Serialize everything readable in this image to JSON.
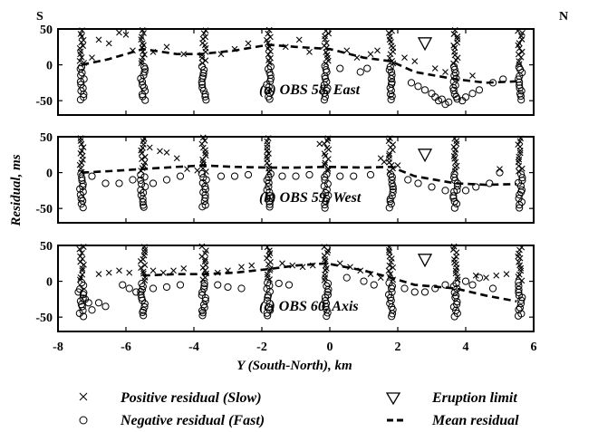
{
  "chart_data": {
    "type": "scatter",
    "xlabel": "Y (South-North), km",
    "ylabel": "Residual, ms",
    "xlim": [
      -8,
      6
    ],
    "x_ticks": [
      "-8",
      "-6",
      "-4",
      "-2",
      "0",
      "2",
      "4",
      "6"
    ],
    "ylim": [
      -70,
      50
    ],
    "y_ticks": [
      "50",
      "0",
      "-50"
    ],
    "corner_labels": {
      "left": "S",
      "right": "N"
    },
    "eruption_limit_x": 2.8,
    "panels": [
      {
        "label": "(a) OBS 58, East",
        "eruption_limit_y": 30,
        "mean_residual": {
          "x": [
            -7.3,
            -6.5,
            -5.5,
            -4.5,
            -3.8,
            -2.8,
            -1.8,
            -1.0,
            0.0,
            1.0,
            1.8,
            2.5,
            3.7,
            4.6,
            5.5
          ],
          "y": [
            0,
            8,
            22,
            15,
            15,
            20,
            28,
            25,
            22,
            10,
            5,
            -10,
            -20,
            -25,
            -23
          ]
        },
        "clusters_x": [
          -7.3,
          -5.5,
          -3.7,
          -1.8,
          -0.1,
          1.8,
          3.7,
          5.6
        ],
        "positive_scatter": {
          "x": [
            -7.0,
            -6.8,
            -6.5,
            -6.2,
            -6.0,
            -5.8,
            -5.2,
            -4.8,
            -4.3,
            -3.2,
            -2.8,
            -2.4,
            -1.3,
            -0.9,
            -0.6,
            0.5,
            0.8,
            1.2,
            1.4,
            2.2,
            2.5,
            3.1,
            3.4,
            4.2
          ],
          "y": [
            10,
            35,
            30,
            45,
            42,
            20,
            18,
            25,
            15,
            15,
            22,
            30,
            25,
            35,
            18,
            20,
            10,
            15,
            20,
            10,
            5,
            -5,
            -10,
            -15
          ]
        },
        "negative_scatter": {
          "x": [
            0.3,
            0.9,
            1.1,
            2.4,
            2.6,
            2.8,
            3.0,
            3.1,
            3.2,
            3.3,
            3.4,
            3.5,
            3.9,
            4.0,
            4.2,
            4.4,
            4.8,
            5.1
          ],
          "y": [
            -5,
            -10,
            -5,
            -25,
            -30,
            -35,
            -40,
            -45,
            -50,
            -48,
            -55,
            -52,
            -50,
            -45,
            -40,
            -35,
            -25,
            -20
          ]
        }
      },
      {
        "label": "(b) OBS 59, West",
        "eruption_limit_y": 25,
        "mean_residual": {
          "x": [
            -7.3,
            -6.5,
            -5.5,
            -4.5,
            -3.7,
            -2.8,
            -1.8,
            -1.0,
            -0.1,
            1.0,
            1.8,
            2.5,
            3.7,
            4.6,
            5.5
          ],
          "y": [
            0,
            2,
            5,
            8,
            10,
            8,
            7,
            7,
            8,
            7,
            8,
            -5,
            -15,
            -17,
            -16
          ]
        },
        "clusters_x": [
          -7.3,
          -5.5,
          -3.7,
          -1.8,
          -0.1,
          1.8,
          3.7,
          5.6
        ],
        "positive_scatter": {
          "x": [
            -5.3,
            -5.0,
            -4.8,
            -4.5,
            -4.2,
            -3.9,
            -0.3,
            1.5,
            1.6,
            2.0,
            5.0
          ],
          "y": [
            35,
            30,
            28,
            20,
            5,
            3,
            40,
            20,
            15,
            10,
            5
          ]
        },
        "negative_scatter": {
          "x": [
            -7.0,
            -6.6,
            -6.2,
            -5.8,
            -5.2,
            -4.8,
            -4.4,
            -3.2,
            -2.8,
            -2.4,
            -1.4,
            -1.0,
            -0.6,
            0.3,
            0.7,
            1.2,
            2.3,
            2.6,
            3.0,
            3.4,
            4.0,
            4.3,
            4.7,
            5.0
          ],
          "y": [
            -5,
            -15,
            -15,
            -10,
            -15,
            -10,
            -5,
            -5,
            -5,
            -3,
            -5,
            -5,
            -3,
            -5,
            -5,
            -3,
            -10,
            -15,
            -20,
            -25,
            -25,
            -20,
            -15,
            0
          ]
        }
      },
      {
        "label": "(c) OBS 60, Axis",
        "eruption_limit_y": 30,
        "mean_residual": {
          "x": [
            -5.5,
            -4.5,
            -3.7,
            -2.8,
            -1.8,
            -1.0,
            -0.1,
            1.0,
            1.8,
            2.5,
            3.7,
            4.6,
            5.5
          ],
          "y": [
            8,
            10,
            10,
            12,
            17,
            22,
            25,
            15,
            5,
            -5,
            -10,
            -20,
            -28
          ]
        },
        "clusters_x": [
          -7.3,
          -5.5,
          -3.7,
          -1.8,
          -0.1,
          1.8,
          3.7,
          5.6
        ],
        "positive_scatter": {
          "x": [
            -6.8,
            -6.5,
            -6.2,
            -5.9,
            -5.2,
            -4.9,
            -4.6,
            -4.3,
            -3.3,
            -3.0,
            -2.6,
            -2.3,
            -1.4,
            -1.1,
            -0.8,
            -0.5,
            0.3,
            0.6,
            0.9,
            1.2,
            1.5,
            4.3,
            4.6,
            4.9,
            5.2
          ],
          "y": [
            10,
            12,
            15,
            12,
            15,
            12,
            15,
            18,
            12,
            15,
            20,
            22,
            25,
            22,
            20,
            22,
            25,
            20,
            15,
            10,
            5,
            8,
            5,
            8,
            10
          ]
        },
        "negative_scatter": {
          "x": [
            -7.4,
            -7.2,
            -7.1,
            -7.0,
            -6.8,
            -6.6,
            -6.1,
            -5.9,
            -5.7,
            -5.2,
            -4.8,
            -4.4,
            -3.3,
            -3.0,
            -2.6,
            -1.5,
            -1.2,
            0.5,
            1.0,
            1.3,
            2.2,
            2.5,
            2.8,
            3.1,
            3.4,
            4.0,
            4.2,
            4.4,
            4.8
          ],
          "y": [
            -15,
            -25,
            -30,
            -40,
            -30,
            -35,
            -5,
            -10,
            -15,
            -10,
            -8,
            -5,
            -5,
            -8,
            -10,
            -3,
            -5,
            5,
            0,
            -5,
            -10,
            -15,
            -15,
            -10,
            -5,
            0,
            -5,
            5,
            -10
          ]
        }
      }
    ],
    "legend": [
      {
        "marker": "x",
        "label": "Positive residual (Slow)"
      },
      {
        "marker": "circle",
        "label": "Negative residual (Fast)"
      },
      {
        "marker": "triangle",
        "label": "Eruption limit"
      },
      {
        "marker": "dashed-line",
        "label": "Mean residual"
      }
    ]
  }
}
